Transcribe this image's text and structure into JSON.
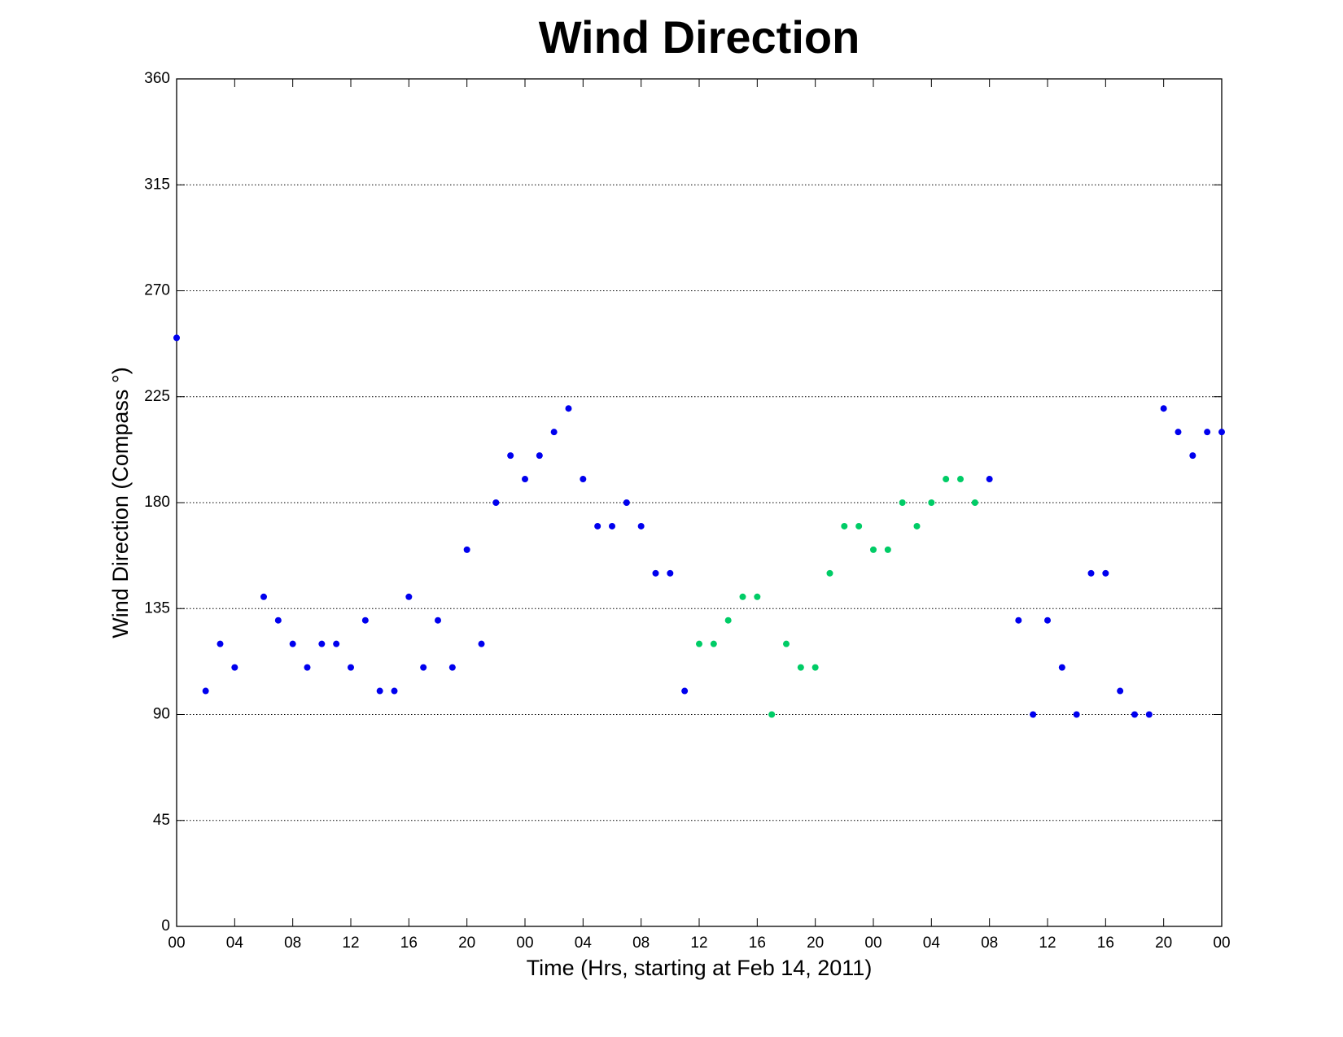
{
  "chart_data": {
    "type": "scatter",
    "title": "Wind Direction",
    "xlabel": "Time (Hrs, starting at Feb 14, 2011)",
    "ylabel": "Wind Direction (Compass  °)",
    "xlim": [
      0,
      72
    ],
    "ylim": [
      0,
      360
    ],
    "xticks": [
      {
        "value": 0,
        "label": "00"
      },
      {
        "value": 4,
        "label": "04"
      },
      {
        "value": 8,
        "label": "08"
      },
      {
        "value": 12,
        "label": "12"
      },
      {
        "value": 16,
        "label": "16"
      },
      {
        "value": 20,
        "label": "20"
      },
      {
        "value": 24,
        "label": "00"
      },
      {
        "value": 28,
        "label": "04"
      },
      {
        "value": 32,
        "label": "08"
      },
      {
        "value": 36,
        "label": "12"
      },
      {
        "value": 40,
        "label": "16"
      },
      {
        "value": 44,
        "label": "20"
      },
      {
        "value": 48,
        "label": "00"
      },
      {
        "value": 52,
        "label": "04"
      },
      {
        "value": 56,
        "label": "08"
      },
      {
        "value": 60,
        "label": "12"
      },
      {
        "value": 64,
        "label": "16"
      },
      {
        "value": 68,
        "label": "20"
      },
      {
        "value": 72,
        "label": "00"
      }
    ],
    "yticks": [
      0,
      45,
      90,
      135,
      180,
      225,
      270,
      315,
      360
    ],
    "grid": true,
    "series": [
      {
        "color": "#0000ee",
        "x": [
          0,
          2,
          3,
          4,
          6,
          7,
          8,
          9,
          10,
          11,
          12,
          13,
          14,
          15,
          16,
          17,
          18,
          19,
          20,
          21,
          22,
          23,
          24,
          25,
          26,
          27,
          28,
          29,
          30,
          31,
          32,
          33,
          34,
          35
        ],
        "values": [
          250,
          100,
          120,
          110,
          140,
          130,
          120,
          110,
          120,
          120,
          110,
          130,
          100,
          100,
          140,
          110,
          130,
          110,
          160,
          120,
          180,
          200,
          190,
          200,
          210,
          220,
          190,
          170,
          170,
          180,
          170,
          150,
          150,
          100
        ]
      },
      {
        "color": "#00cc66",
        "x": [
          36,
          37,
          38,
          39,
          40,
          41,
          42,
          43,
          44,
          45,
          46,
          47,
          48,
          49,
          50,
          51,
          52,
          53,
          54,
          55
        ],
        "values": [
          120,
          120,
          130,
          140,
          140,
          90,
          120,
          110,
          110,
          150,
          170,
          170,
          160,
          160,
          180,
          170,
          180,
          190,
          190,
          180
        ]
      },
      {
        "color": "#0000ee",
        "x": [
          56,
          58,
          59,
          60,
          61,
          62,
          63,
          64,
          65,
          66,
          67,
          68,
          69,
          70,
          71,
          72
        ],
        "values": [
          190,
          130,
          90,
          130,
          110,
          90,
          150,
          150,
          100,
          90,
          90,
          220,
          210,
          200,
          210,
          210
        ]
      }
    ]
  }
}
